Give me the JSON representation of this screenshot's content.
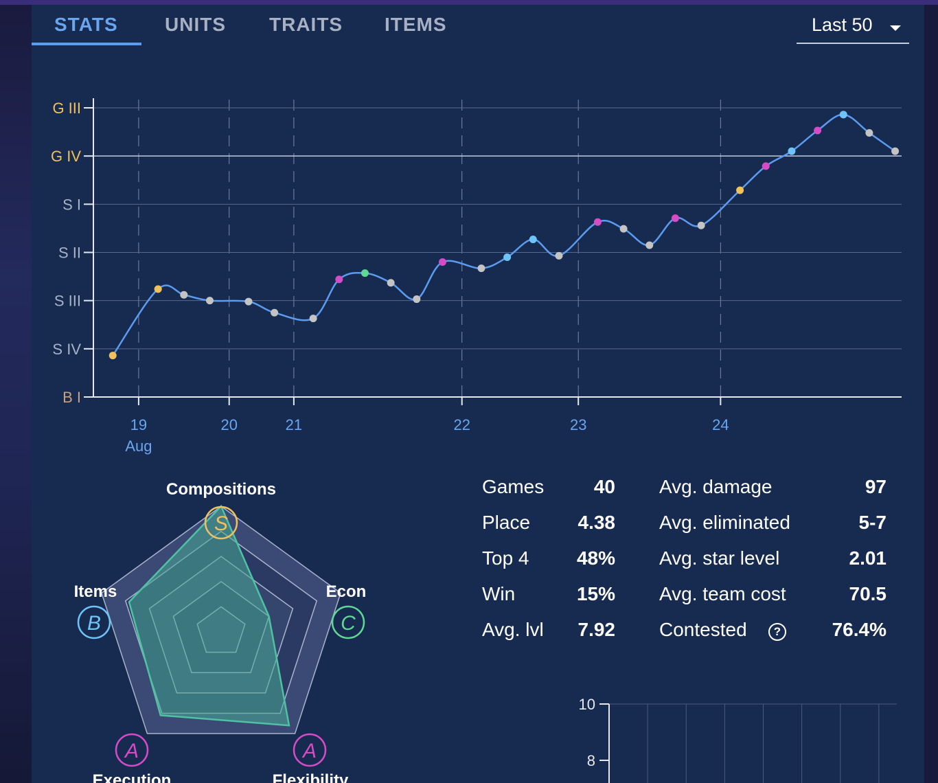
{
  "tabs": [
    {
      "label": "STATS",
      "active": true
    },
    {
      "label": "UNITS",
      "active": false
    },
    {
      "label": "TRAITS",
      "active": false
    },
    {
      "label": "ITEMS",
      "active": false
    }
  ],
  "filter": {
    "selected": "Last 50"
  },
  "colors": {
    "line": "#5b9cf0",
    "gold": "#f1c15b",
    "purple": "#d64bc6",
    "blue": "#6fc4f7",
    "green": "#5fd896",
    "gray": "#c4c4c4"
  },
  "chart_data": [
    {
      "type": "line",
      "y_tick_labels": [
        "G III",
        "G IV",
        "S I",
        "S II",
        "S III",
        "S IV",
        "B I"
      ],
      "y_tick_colors": [
        "#f1c15b",
        "#f1c15b",
        "#a9b3c8",
        "#a9b3c8",
        "#a9b3c8",
        "#a9b3c8",
        "#c9a080"
      ],
      "x_tick_labels": [
        {
          "label": "19",
          "sub": "Aug",
          "day": 19.0
        },
        {
          "label": "20",
          "sub": "",
          "day": 19.7
        },
        {
          "label": "21",
          "sub": "",
          "day": 20.2
        },
        {
          "label": "22",
          "sub": "",
          "day": 21.5
        },
        {
          "label": "23",
          "sub": "",
          "day": 22.4
        },
        {
          "label": "24",
          "sub": "",
          "day": 23.5
        }
      ],
      "x_range": [
        18.65,
        24.9
      ],
      "y_range": [
        0,
        6
      ],
      "solid_grid_levels": [
        1,
        2,
        3,
        4,
        5
      ],
      "points": [
        {
          "day": 18.8,
          "rank": 0.86,
          "color": "gold"
        },
        {
          "day": 19.15,
          "rank": 2.24,
          "color": "gold"
        },
        {
          "day": 19.35,
          "rank": 2.12,
          "color": "gray"
        },
        {
          "day": 19.55,
          "rank": 2.0,
          "color": "gray"
        },
        {
          "day": 19.85,
          "rank": 1.98,
          "color": "gray"
        },
        {
          "day": 20.05,
          "rank": 1.75,
          "color": "gray"
        },
        {
          "day": 20.35,
          "rank": 1.63,
          "color": "gray"
        },
        {
          "day": 20.55,
          "rank": 2.44,
          "color": "purple"
        },
        {
          "day": 20.75,
          "rank": 2.57,
          "color": "green"
        },
        {
          "day": 20.95,
          "rank": 2.37,
          "color": "gray"
        },
        {
          "day": 21.15,
          "rank": 2.03,
          "color": "gray"
        },
        {
          "day": 21.35,
          "rank": 2.8,
          "color": "purple"
        },
        {
          "day": 21.65,
          "rank": 2.67,
          "color": "gray"
        },
        {
          "day": 21.85,
          "rank": 2.9,
          "color": "blue"
        },
        {
          "day": 22.05,
          "rank": 3.27,
          "color": "blue"
        },
        {
          "day": 22.25,
          "rank": 2.93,
          "color": "gray"
        },
        {
          "day": 22.55,
          "rank": 3.63,
          "color": "purple"
        },
        {
          "day": 22.75,
          "rank": 3.49,
          "color": "gray"
        },
        {
          "day": 22.95,
          "rank": 3.15,
          "color": "gray"
        },
        {
          "day": 23.15,
          "rank": 3.71,
          "color": "purple"
        },
        {
          "day": 23.35,
          "rank": 3.56,
          "color": "gray"
        },
        {
          "day": 23.65,
          "rank": 4.29,
          "color": "gold"
        },
        {
          "day": 23.85,
          "rank": 4.79,
          "color": "purple"
        },
        {
          "day": 24.05,
          "rank": 5.1,
          "color": "blue"
        },
        {
          "day": 24.25,
          "rank": 5.53,
          "color": "purple"
        },
        {
          "day": 24.45,
          "rank": 5.86,
          "color": "blue"
        },
        {
          "day": 24.65,
          "rank": 5.48,
          "color": "gray"
        },
        {
          "day": 24.85,
          "rank": 5.1,
          "color": "gray"
        }
      ]
    },
    {
      "type": "radar",
      "axes": [
        {
          "label": "Compositions",
          "grade": "S",
          "value": 1.0,
          "color": "#f1c15b"
        },
        {
          "label": "Econ",
          "grade": "C",
          "value": 0.4,
          "color": "#5fd896"
        },
        {
          "label": "Flexibility",
          "grade": "A",
          "value": 0.92,
          "color": "#d64bc6"
        },
        {
          "label": "Execution",
          "grade": "A",
          "value": 0.82,
          "color": "#d64bc6"
        },
        {
          "label": "Items",
          "grade": "B",
          "value": 0.77,
          "color": "#6fc4f7"
        }
      ],
      "rings": 5
    },
    {
      "type": "scatter",
      "y_tick_labels": [
        "10",
        "8"
      ],
      "columns": 8,
      "y_range": [
        0,
        10
      ]
    }
  ],
  "stats_left": [
    {
      "label": "Games",
      "value": "40"
    },
    {
      "label": "Place",
      "value": "4.38"
    },
    {
      "label": "Top 4",
      "value": "48%"
    },
    {
      "label": "Win",
      "value": "15%"
    },
    {
      "label": "Avg. lvl",
      "value": "7.92"
    }
  ],
  "stats_right": [
    {
      "label": "Avg. damage",
      "value": "97"
    },
    {
      "label": "Avg. eliminated",
      "value": "5-7"
    },
    {
      "label": "Avg. star level",
      "value": "2.01"
    },
    {
      "label": "Avg. team cost",
      "value": "70.5"
    },
    {
      "label": "Contested",
      "value": "76.4%",
      "has_help_icon": true
    }
  ],
  "help_icon_glyph": "?"
}
